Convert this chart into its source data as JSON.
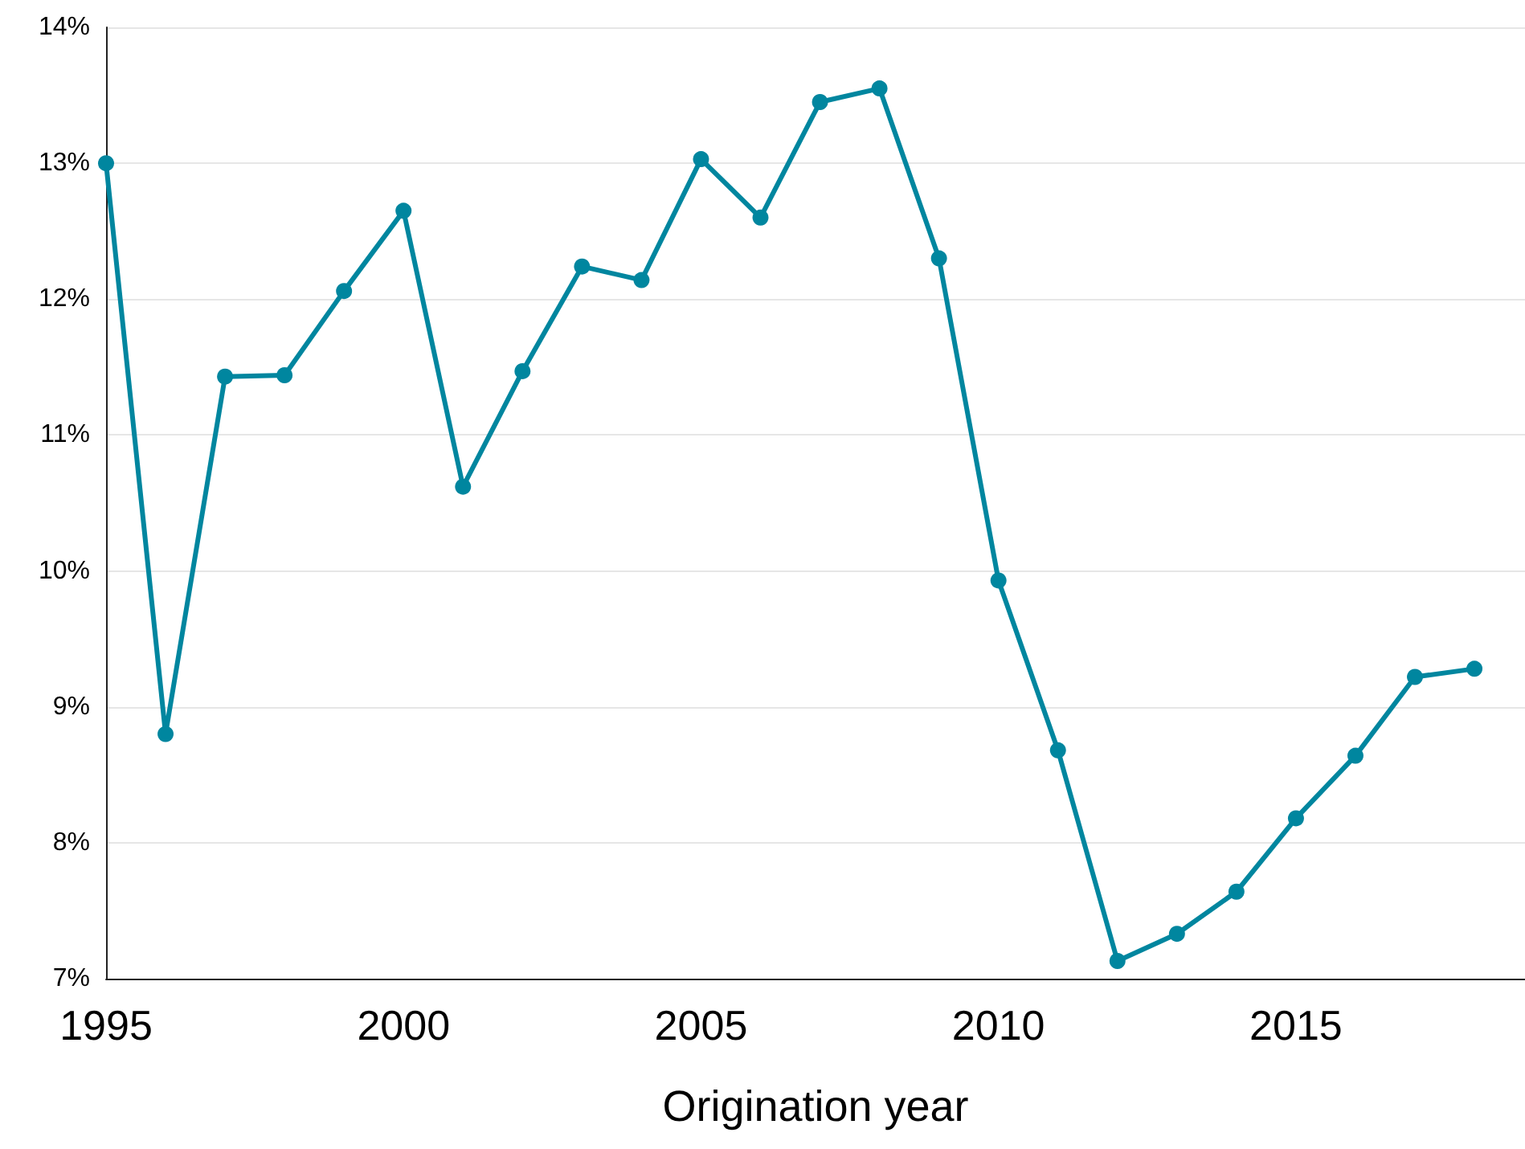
{
  "chart_data": {
    "type": "line",
    "xlabel": "Origination year",
    "x": [
      1995,
      1996,
      1997,
      1998,
      1999,
      2000,
      2001,
      2002,
      2003,
      2004,
      2005,
      2006,
      2007,
      2008,
      2009,
      2010,
      2011,
      2012,
      2013,
      2014,
      2015,
      2016,
      2017,
      2018
    ],
    "series": [
      {
        "color": "#00869f",
        "values": [
          13.0,
          8.8,
          11.43,
          11.44,
          12.06,
          12.65,
          10.62,
          11.47,
          12.24,
          12.14,
          13.03,
          12.6,
          13.45,
          13.55,
          12.3,
          9.93,
          8.68,
          7.13,
          7.33,
          7.64,
          8.18,
          8.64,
          9.22,
          9.28
        ]
      }
    ],
    "xlim": [
      1995,
      2018.85
    ],
    "xticks": [
      1995,
      2000,
      2005,
      2010,
      2015
    ],
    "ylim": [
      7,
      14
    ],
    "yticks": [
      {
        "value": 7,
        "label": "7%"
      },
      {
        "value": 8,
        "label": "8%"
      },
      {
        "value": 9,
        "label": "9%"
      },
      {
        "value": 10,
        "label": "10%"
      },
      {
        "value": 11,
        "label": "11%"
      },
      {
        "value": 12,
        "label": "12%"
      },
      {
        "value": 13,
        "label": "13%"
      },
      {
        "value": 14,
        "label": "14%"
      }
    ],
    "grid": "y",
    "marker": "circle",
    "line_style": "solid"
  }
}
